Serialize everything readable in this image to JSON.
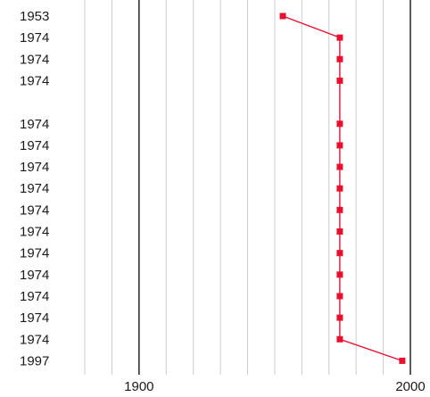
{
  "chart_data": {
    "type": "line",
    "title": "",
    "xlabel": "",
    "ylabel": "",
    "xlim": [
      1880,
      2000
    ],
    "x_ticks": [
      1900,
      2000
    ],
    "x_tick_labels": [
      "1900",
      "2000"
    ],
    "x_major_grid": [
      1900,
      2000
    ],
    "x_minor_grid_step": 10,
    "row_labels": [
      "1953",
      "1974",
      "1974",
      "1974",
      "",
      "1974",
      "1974",
      "1974",
      "1974",
      "1974",
      "1974",
      "1974",
      "1974",
      "1974",
      "1974",
      "1974",
      "1997"
    ],
    "series": [
      {
        "values": [
          1953,
          1974,
          1974,
          1974,
          null,
          1974,
          1974,
          1974,
          1974,
          1974,
          1974,
          1974,
          1974,
          1974,
          1974,
          1974,
          1997
        ]
      }
    ],
    "colors": {
      "series": "#e8102e",
      "major_grid": "#333333",
      "minor_grid": "#cccccc"
    },
    "grid": true,
    "legend": "none"
  }
}
